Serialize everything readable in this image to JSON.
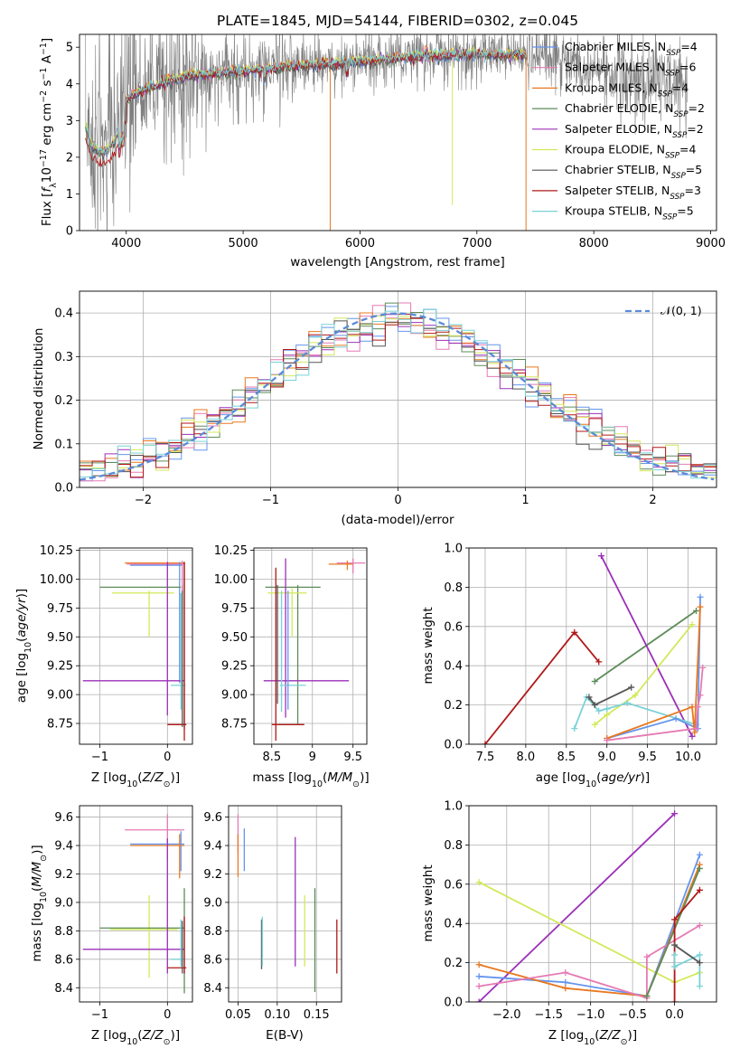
{
  "colors": {
    "chabrier_miles": "#6495ED",
    "salpeter_miles": "#E67AB4",
    "kroupa_miles": "#E87820",
    "chabrier_elodie": "#5E8C5A",
    "salpeter_elodie": "#9B30B8",
    "kroupa_elodie": "#D4E85A",
    "chabrier_stelib": "#555555",
    "salpeter_stelib": "#B01818",
    "kroupa_stelib": "#79D2D6",
    "data_gray": "#7F7F7F",
    "normal_curve": "#5B8BD9",
    "grid": "#B0B0B0"
  },
  "chart_data": [
    {
      "id": "spectrum",
      "type": "line",
      "title": "PLATE=1845, MJD=54144, FIBERID=0302, z=0.045",
      "xlabel": "wavelength [Angstrom, rest frame]",
      "ylabel": "Flux [f_λ 10^-17 erg cm^-2 s^-1 A^-1]",
      "xlim": [
        3600,
        9050
      ],
      "ylim": [
        0,
        5.35
      ],
      "xticks": [
        4000,
        5000,
        6000,
        7000,
        8000,
        9000
      ],
      "yticks": [
        0,
        1,
        2,
        3,
        4,
        5
      ],
      "grid": false,
      "legend": "right",
      "data_wavelength_range": [
        3650,
        8800
      ],
      "model_wavelength_range": [
        3650,
        7420
      ],
      "continuum_points": [
        [
          3650,
          3.0
        ],
        [
          3700,
          2.4
        ],
        [
          3800,
          2.2
        ],
        [
          3900,
          2.5
        ],
        [
          4000,
          3.6
        ],
        [
          4200,
          3.9
        ],
        [
          4500,
          4.2
        ],
        [
          5000,
          4.35
        ],
        [
          5500,
          4.5
        ],
        [
          6000,
          4.6
        ],
        [
          6500,
          4.75
        ],
        [
          7000,
          4.8
        ],
        [
          7400,
          4.8
        ],
        [
          7600,
          4.7
        ],
        [
          8000,
          4.4
        ],
        [
          8500,
          4.1
        ],
        [
          8800,
          3.95
        ]
      ],
      "legend_entries": [
        {
          "label": "Chabrier MILES, N",
          "sub": "SSP",
          "val": "=4",
          "color_key": "chabrier_miles"
        },
        {
          "label": "Salpeter MILES, N",
          "sub": "SSP",
          "val": "=6",
          "color_key": "salpeter_miles"
        },
        {
          "label": "Kroupa MILES, N",
          "sub": "SSP",
          "val": "=4",
          "color_key": "kroupa_miles"
        },
        {
          "label": "Chabrier ELODIE, N",
          "sub": "SSP",
          "val": "=2",
          "color_key": "chabrier_elodie"
        },
        {
          "label": "Salpeter ELODIE, N",
          "sub": "SSP",
          "val": "=2",
          "color_key": "salpeter_elodie"
        },
        {
          "label": "Kroupa ELODIE, N",
          "sub": "SSP",
          "val": "=4",
          "color_key": "kroupa_elodie"
        },
        {
          "label": "Chabrier STELIB, N",
          "sub": "SSP",
          "val": "=5",
          "color_key": "chabrier_stelib"
        },
        {
          "label": "Salpeter STELIB, N",
          "sub": "SSP",
          "val": "=3",
          "color_key": "salpeter_stelib"
        },
        {
          "label": "Kroupa STELIB, N",
          "sub": "SSP",
          "val": "=5",
          "color_key": "kroupa_stelib"
        }
      ]
    },
    {
      "id": "residuals",
      "type": "line",
      "xlabel": "(data-model)/error",
      "ylabel": "Normed distribution",
      "xlim": [
        -2.5,
        2.5
      ],
      "ylim": [
        0,
        0.45
      ],
      "xticks": [
        -2,
        -1,
        0,
        1,
        2
      ],
      "yticks": [
        0.0,
        0.1,
        0.2,
        0.3,
        0.4
      ],
      "grid": true,
      "legend": "top-right",
      "normal_label": "𝒩(0, 1)",
      "bin_width": 0.1
    },
    {
      "id": "age_vs_Z",
      "type": "scatter",
      "xlabel": "Z [log10(Z/Z⊙)]",
      "ylabel": "age [log10(age/yr)]",
      "xlim": [
        -1.3,
        0.37
      ],
      "ylim": [
        8.57,
        10.27
      ],
      "xticks": [
        -1,
        0
      ],
      "yticks": [
        8.75,
        9.0,
        9.25,
        9.5,
        9.75,
        10.0,
        10.25
      ],
      "grid": true,
      "segments": [
        {
          "c": "kroupa_miles",
          "h": [
            -0.63,
            0.25,
            10.14
          ]
        },
        {
          "c": "salpeter_miles",
          "h": [
            -0.6,
            0.25,
            10.13
          ]
        },
        {
          "c": "chabrier_miles",
          "h": [
            -0.55,
            0.22,
            10.12
          ],
          "v": [
            0.18,
            9.1,
            10.15
          ]
        },
        {
          "c": "chabrier_elodie",
          "h": [
            -1.0,
            0.2,
            9.93
          ],
          "v": [
            0.25,
            8.7,
            10.15
          ]
        },
        {
          "c": "kroupa_elodie",
          "h": [
            -0.82,
            0.1,
            9.88
          ],
          "v": [
            -0.27,
            9.5,
            9.9
          ]
        },
        {
          "c": "salpeter_elodie",
          "h": [
            -1.25,
            0.25,
            9.12
          ],
          "v": [
            0.0,
            8.82,
            10.15
          ]
        },
        {
          "c": "kroupa_stelib",
          "h": [
            0.05,
            0.27,
            9.08
          ],
          "v": [
            0.2,
            8.87,
            9.88
          ]
        },
        {
          "c": "salpeter_stelib",
          "h": [
            0.0,
            0.28,
            8.74
          ],
          "v": [
            0.25,
            8.6,
            10.15
          ]
        },
        {
          "c": "chabrier_stelib",
          "v": [
            0.22,
            8.72,
            9.95
          ]
        },
        {
          "c": "salpeter_miles",
          "v": [
            0.22,
            9.9,
            10.16
          ]
        }
      ]
    },
    {
      "id": "age_vs_mass",
      "type": "scatter",
      "xlabel": "mass [log10(M/M⊙)]",
      "ylabel": "",
      "xlim": [
        8.28,
        9.67
      ],
      "ylim": [
        8.57,
        10.27
      ],
      "xticks": [
        8.5,
        9.0,
        9.5
      ],
      "yticks": [
        8.75,
        9.0,
        9.25,
        9.5,
        9.75,
        10.0,
        10.25
      ],
      "grid": true,
      "segments": [
        {
          "c": "salpeter_miles",
          "h": [
            9.3,
            9.65,
            10.14
          ],
          "v": [
            9.5,
            10.05,
            10.18
          ]
        },
        {
          "c": "kroupa_miles",
          "h": [
            9.2,
            9.5,
            10.13
          ],
          "v": [
            9.43,
            10.08,
            10.16
          ]
        },
        {
          "c": "chabrier_elodie",
          "h": [
            8.42,
            9.1,
            9.93
          ],
          "v": [
            8.82,
            8.74,
            9.95
          ]
        },
        {
          "c": "kroupa_elodie",
          "h": [
            8.45,
            8.93,
            9.88
          ],
          "v": [
            8.75,
            9.5,
            9.92
          ]
        },
        {
          "c": "salpeter_elodie",
          "h": [
            8.4,
            9.45,
            9.12
          ],
          "v": [
            8.67,
            8.8,
            10.18
          ]
        },
        {
          "c": "kroupa_stelib",
          "h": [
            8.6,
            8.92,
            9.08
          ],
          "v": [
            8.62,
            8.85,
            9.9
          ]
        },
        {
          "c": "salpeter_stelib",
          "h": [
            8.5,
            8.9,
            8.74
          ],
          "v": [
            8.55,
            8.6,
            10.1
          ]
        },
        {
          "c": "chabrier_stelib",
          "v": [
            8.57,
            8.92,
            9.95
          ]
        },
        {
          "c": "chabrier_miles",
          "v": [
            8.7,
            8.87,
            9.9
          ]
        }
      ]
    },
    {
      "id": "weight_vs_age",
      "type": "line",
      "xlabel": "age [log10(age/yr)]",
      "ylabel": "mass weight",
      "xlim": [
        7.3,
        10.35
      ],
      "ylim": [
        0,
        1
      ],
      "xticks": [
        7.5,
        8.0,
        8.5,
        9.0,
        9.5,
        10.0
      ],
      "yticks": [
        0.0,
        0.2,
        0.4,
        0.6,
        0.8,
        1.0
      ],
      "grid": true,
      "series": [
        {
          "c": "salpeter_stelib",
          "x": [
            7.5,
            8.6,
            8.9
          ],
          "y": [
            0.0,
            0.57,
            0.42
          ]
        },
        {
          "c": "chabrier_elodie",
          "x": [
            8.85,
            10.1
          ],
          "y": [
            0.32,
            0.68
          ]
        },
        {
          "c": "salpeter_elodie",
          "x": [
            8.93,
            10.05
          ],
          "y": [
            0.96,
            0.04
          ]
        },
        {
          "c": "kroupa_elodie",
          "x": [
            8.85,
            9.0,
            9.35,
            10.05
          ],
          "y": [
            0.1,
            0.15,
            0.25,
            0.61
          ]
        },
        {
          "c": "kroupa_stelib",
          "x": [
            8.6,
            8.75,
            8.9,
            9.0,
            9.25,
            10.1
          ],
          "y": [
            0.08,
            0.24,
            0.17,
            0.18,
            0.21,
            0.1
          ]
        },
        {
          "c": "chabrier_stelib",
          "x": [
            8.78,
            8.85,
            9.3
          ],
          "y": [
            0.24,
            0.2,
            0.29
          ]
        },
        {
          "c": "chabrier_miles",
          "x": [
            9.0,
            9.85,
            10.12,
            10.15
          ],
          "y": [
            0.03,
            0.13,
            0.08,
            0.75
          ]
        },
        {
          "c": "kroupa_miles",
          "x": [
            9.0,
            10.05,
            10.08,
            10.15
          ],
          "y": [
            0.03,
            0.19,
            0.06,
            0.7
          ]
        },
        {
          "c": "salpeter_miles",
          "x": [
            9.0,
            10.1,
            10.12,
            10.15,
            10.18
          ],
          "y": [
            0.02,
            0.08,
            0.19,
            0.25,
            0.39
          ]
        }
      ]
    },
    {
      "id": "mass_vs_Z",
      "type": "scatter",
      "xlabel": "Z [log10(Z/Z⊙)]",
      "ylabel": "mass [log10(M/M⊙)]",
      "xlim": [
        -1.3,
        0.37
      ],
      "ylim": [
        8.3,
        9.68
      ],
      "xticks": [
        -1,
        0
      ],
      "yticks": [
        8.4,
        8.6,
        8.8,
        9.0,
        9.2,
        9.4,
        9.6
      ],
      "grid": true,
      "segments": [
        {
          "c": "salpeter_miles",
          "h": [
            -0.63,
            0.25,
            9.51
          ],
          "v": [
            0.0,
            9.3,
            9.62
          ]
        },
        {
          "c": "chabrier_miles",
          "h": [
            -0.55,
            0.25,
            9.41
          ],
          "v": [
            0.2,
            9.22,
            9.5
          ]
        },
        {
          "c": "kroupa_miles",
          "h": [
            -0.55,
            0.25,
            9.4
          ],
          "v": [
            0.18,
            9.17,
            9.48
          ]
        },
        {
          "c": "kroupa_elodie",
          "h": [
            -0.85,
            0.15,
            8.81
          ],
          "v": [
            -0.27,
            8.47,
            9.05
          ]
        },
        {
          "c": "chabrier_elodie",
          "h": [
            -1.0,
            0.25,
            8.82
          ],
          "v": [
            0.25,
            8.36,
            9.1
          ]
        },
        {
          "c": "salpeter_elodie",
          "h": [
            -1.25,
            0.25,
            8.67
          ],
          "v": [
            0.0,
            8.5,
            9.45
          ]
        },
        {
          "c": "kroupa_stelib",
          "h": [
            0.05,
            0.27,
            8.6
          ],
          "v": [
            0.2,
            8.55,
            8.88
          ]
        },
        {
          "c": "salpeter_stelib",
          "h": [
            0.0,
            0.28,
            8.54
          ],
          "v": [
            0.25,
            8.5,
            8.9
          ]
        },
        {
          "c": "chabrier_stelib",
          "v": [
            0.22,
            8.5,
            8.87
          ]
        }
      ]
    },
    {
      "id": "mass_vs_ebv",
      "type": "scatter",
      "xlabel": "E(B-V)",
      "ylabel": "",
      "xlim": [
        0.038,
        0.182
      ],
      "ylim": [
        8.3,
        9.68
      ],
      "xticks": [
        0.05,
        0.1,
        0.15
      ],
      "yticks": [
        8.4,
        8.6,
        8.8,
        9.0,
        9.2,
        9.4,
        9.6
      ],
      "grid": true,
      "segments": [
        {
          "c": "salpeter_miles",
          "v": [
            0.05,
            9.35,
            9.62
          ]
        },
        {
          "c": "kroupa_miles",
          "v": [
            0.05,
            9.18,
            9.48
          ]
        },
        {
          "c": "chabrier_miles",
          "v": [
            0.058,
            9.22,
            9.52
          ]
        },
        {
          "c": "chabrier_stelib",
          "v": [
            0.08,
            8.53,
            8.88
          ]
        },
        {
          "c": "kroupa_stelib",
          "v": [
            0.081,
            8.55,
            8.9
          ]
        },
        {
          "c": "salpeter_elodie",
          "v": [
            0.123,
            8.55,
            9.46
          ]
        },
        {
          "c": "kroupa_elodie",
          "v": [
            0.135,
            8.55,
            9.05
          ]
        },
        {
          "c": "chabrier_elodie",
          "v": [
            0.148,
            8.37,
            9.1
          ]
        },
        {
          "c": "salpeter_stelib",
          "v": [
            0.176,
            8.5,
            8.88
          ]
        }
      ]
    },
    {
      "id": "weight_vs_Z",
      "type": "line",
      "xlabel": "Z [log10(Z/Z⊙)]",
      "ylabel": "mass weight",
      "xlim": [
        -2.45,
        0.5
      ],
      "ylim": [
        0,
        1
      ],
      "xticks": [
        -2.0,
        -1.5,
        -1.0,
        -0.5,
        0.0
      ],
      "yticks": [
        0.0,
        0.2,
        0.4,
        0.6,
        0.8,
        1.0
      ],
      "grid": true,
      "series": [
        {
          "c": "salpeter_elodie",
          "x": [
            -2.33,
            0.0
          ],
          "y": [
            0.0,
            0.96
          ]
        },
        {
          "c": "kroupa_elodie",
          "x": [
            -2.33,
            0.0,
            0.3
          ],
          "y": [
            0.61,
            0.1,
            0.15
          ]
        },
        {
          "c": "chabrier_miles",
          "x": [
            -2.33,
            -1.3,
            -0.33,
            0.3
          ],
          "y": [
            0.13,
            0.1,
            0.03,
            0.75
          ]
        },
        {
          "c": "kroupa_miles",
          "x": [
            -2.33,
            -1.3,
            -0.33,
            0.3
          ],
          "y": [
            0.19,
            0.07,
            0.03,
            0.7
          ]
        },
        {
          "c": "salpeter_miles",
          "x": [
            -2.33,
            -1.3,
            -0.33,
            -0.33,
            0.3
          ],
          "y": [
            0.08,
            0.15,
            0.02,
            0.23,
            0.39
          ]
        },
        {
          "c": "chabrier_elodie",
          "x": [
            -0.33,
            0.3
          ],
          "y": [
            0.03,
            0.68
          ]
        },
        {
          "c": "salpeter_stelib",
          "x": [
            0.0,
            0.0,
            0.3
          ],
          "y": [
            0.0,
            0.42,
            0.57
          ]
        },
        {
          "c": "kroupa_stelib",
          "x": [
            0.0,
            0.0,
            0.3,
            0.3
          ],
          "y": [
            0.24,
            0.18,
            0.24,
            0.08
          ]
        },
        {
          "c": "chabrier_stelib",
          "x": [
            0.0,
            0.3
          ],
          "y": [
            0.29,
            0.2
          ]
        }
      ]
    }
  ]
}
